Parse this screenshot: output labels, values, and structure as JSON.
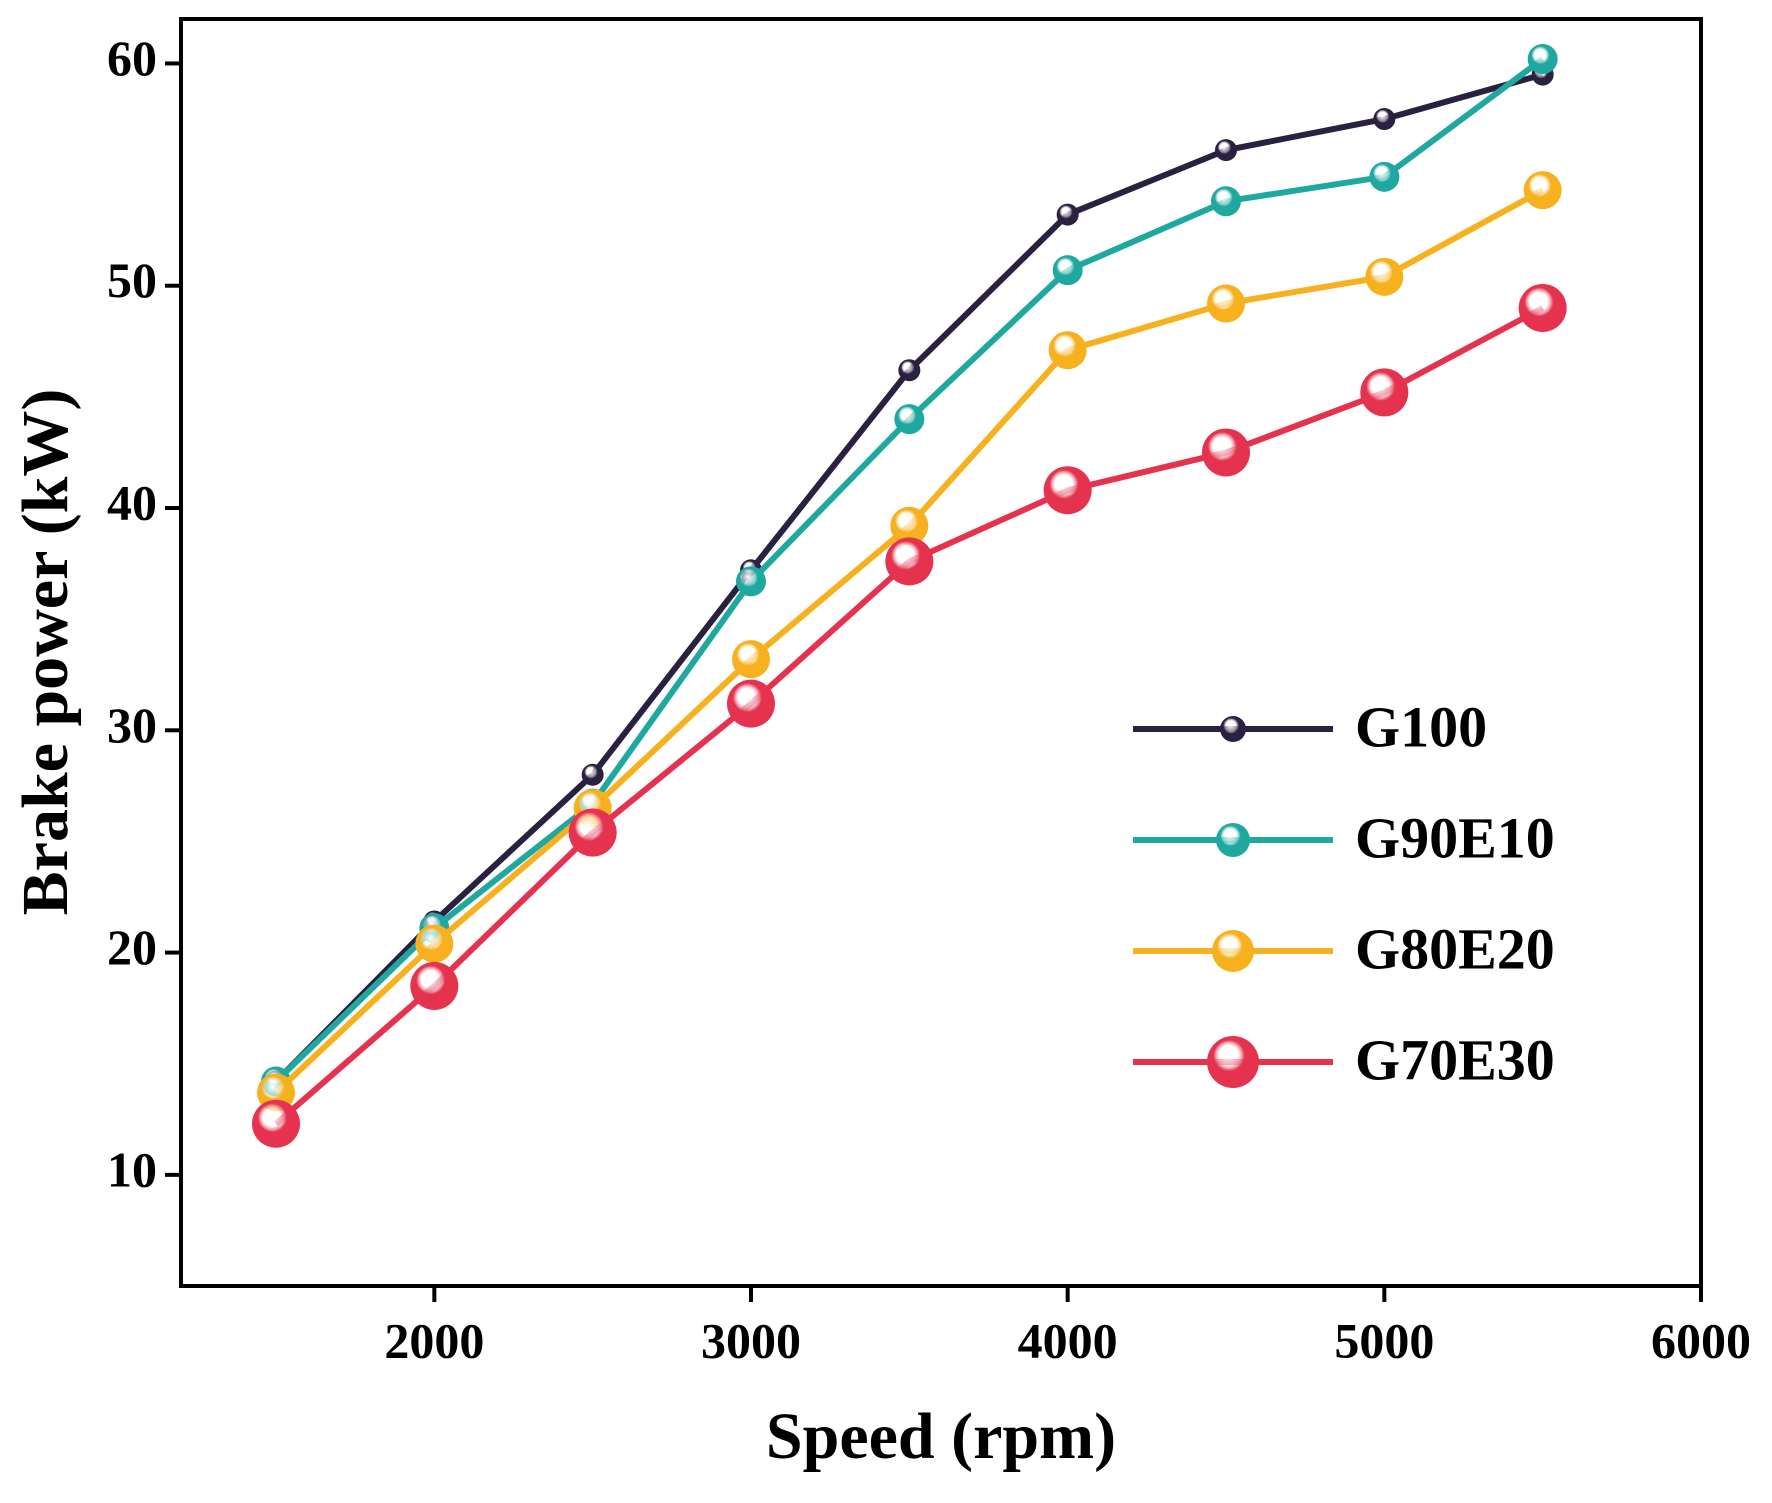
{
  "chart_data": {
    "type": "line",
    "x_label": "Speed (rpm)",
    "y_label": "Brake power (kW)",
    "x": [
      1500,
      2000,
      2500,
      3000,
      3500,
      4000,
      4500,
      5000,
      5500
    ],
    "series": [
      {
        "name": "G100",
        "color": "#2a2140",
        "values": [
          14.2,
          21.4,
          28.0,
          37.2,
          46.2,
          53.2,
          56.1,
          57.5,
          59.5
        ]
      },
      {
        "name": "G90E10",
        "color": "#1fa8a0",
        "values": [
          14.2,
          21.1,
          26.7,
          36.7,
          44.0,
          50.7,
          53.8,
          54.9,
          60.2
        ]
      },
      {
        "name": "G80E20",
        "color": "#f7b01e",
        "values": [
          13.7,
          20.4,
          26.5,
          33.2,
          39.2,
          47.1,
          49.2,
          50.4,
          54.3
        ]
      },
      {
        "name": "G70E30",
        "color": "#e5334f",
        "values": [
          12.3,
          18.5,
          25.4,
          31.2,
          37.6,
          40.8,
          42.5,
          45.2,
          49.0
        ]
      }
    ],
    "xlim": [
      1200,
      6000
    ],
    "xticks": [
      2000,
      3000,
      4000,
      5000,
      6000
    ],
    "ylim": [
      5,
      62
    ],
    "yticks": [
      10,
      20,
      30,
      40,
      50,
      60
    ],
    "legend": "right"
  }
}
